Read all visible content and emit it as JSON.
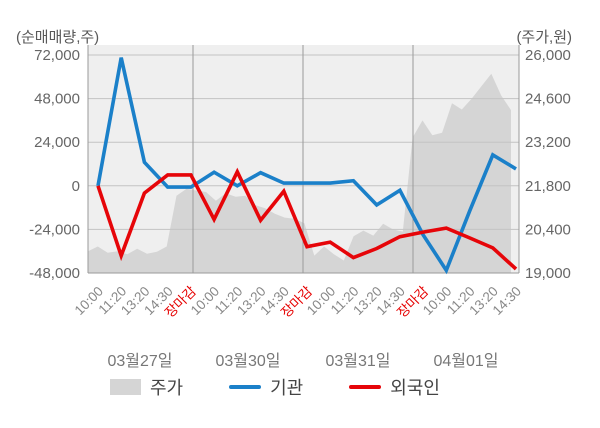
{
  "header": {
    "left_unit": "(순매매량,주)",
    "right_unit": "(주가,원)"
  },
  "legend": {
    "price": "주가",
    "institution": "기관",
    "foreigner": "외국인"
  },
  "colors": {
    "plot_bg": "#efefef",
    "price_area": "#d5d5d5",
    "institution": "#1b80c9",
    "foreigner": "#e60509",
    "grid_h": "#c3c3c3",
    "grid_v": "#9a9a9a",
    "axis": "#9a9a9a",
    "tick_label": "#666666",
    "x_label": "#888888",
    "close_label": "#e60000",
    "day_label": "#777777",
    "legend_text": "#444444"
  },
  "chart_data": {
    "type": "area+line",
    "title": "",
    "left_axis": {
      "label": "(순매매량,주)",
      "ticks": [
        72000,
        48000,
        24000,
        0,
        -24000,
        -48000
      ],
      "ylim": [
        -48000,
        72000
      ]
    },
    "right_axis": {
      "label": "(주가,원)",
      "ticks": [
        26000,
        24600,
        23200,
        21800,
        20400,
        19000
      ],
      "ylim": [
        19000,
        26000
      ]
    },
    "days": [
      {
        "date": "03월27일",
        "times": [
          "10:00",
          "11:20",
          "13:20",
          "14:30",
          "장마감"
        ]
      },
      {
        "date": "03월30일",
        "times": [
          "10:00",
          "11:20",
          "13:20",
          "14:30",
          "장마감"
        ]
      },
      {
        "date": "03월31일",
        "times": [
          "10:00",
          "11:20",
          "13:20",
          "14:30",
          "장마감"
        ]
      },
      {
        "date": "04월01일",
        "times": [
          "10:00",
          "11:20",
          "13:20",
          "14:30"
        ]
      }
    ],
    "close_time_label": "장마감",
    "grid": true,
    "legend_position": "bottom",
    "series": [
      {
        "name": "주가",
        "type": "area",
        "axis": "right",
        "values": [
          19700,
          19850,
          19650,
          19700,
          19600,
          19780,
          19620,
          19680,
          19850,
          21480,
          21700,
          21650,
          21600,
          21320,
          21560,
          21450,
          21480,
          21180,
          21080,
          20900,
          20780,
          20740,
          20600,
          19560,
          19850,
          19600,
          19400,
          20180,
          20360,
          20200,
          20580,
          20400,
          20330,
          23350,
          23900,
          23420,
          23500,
          24450,
          24250,
          24600,
          25000,
          25400,
          24700,
          24230
        ]
      },
      {
        "name": "기관",
        "type": "line",
        "axis": "left",
        "values": [
          0,
          70500,
          13000,
          -700,
          -700,
          7500,
          0,
          7200,
          1500,
          1500,
          1500,
          2800,
          -10500,
          -2500,
          -27000,
          -46500,
          -14000,
          17000,
          9300
        ]
      },
      {
        "name": "외국인",
        "type": "line",
        "axis": "left",
        "values": [
          0,
          -38500,
          -4000,
          6000,
          6000,
          -18500,
          7700,
          -19000,
          -3000,
          -33500,
          -31000,
          -39500,
          -34500,
          -28000,
          -25500,
          -23300,
          -28700,
          -34200,
          -45800
        ]
      }
    ]
  }
}
